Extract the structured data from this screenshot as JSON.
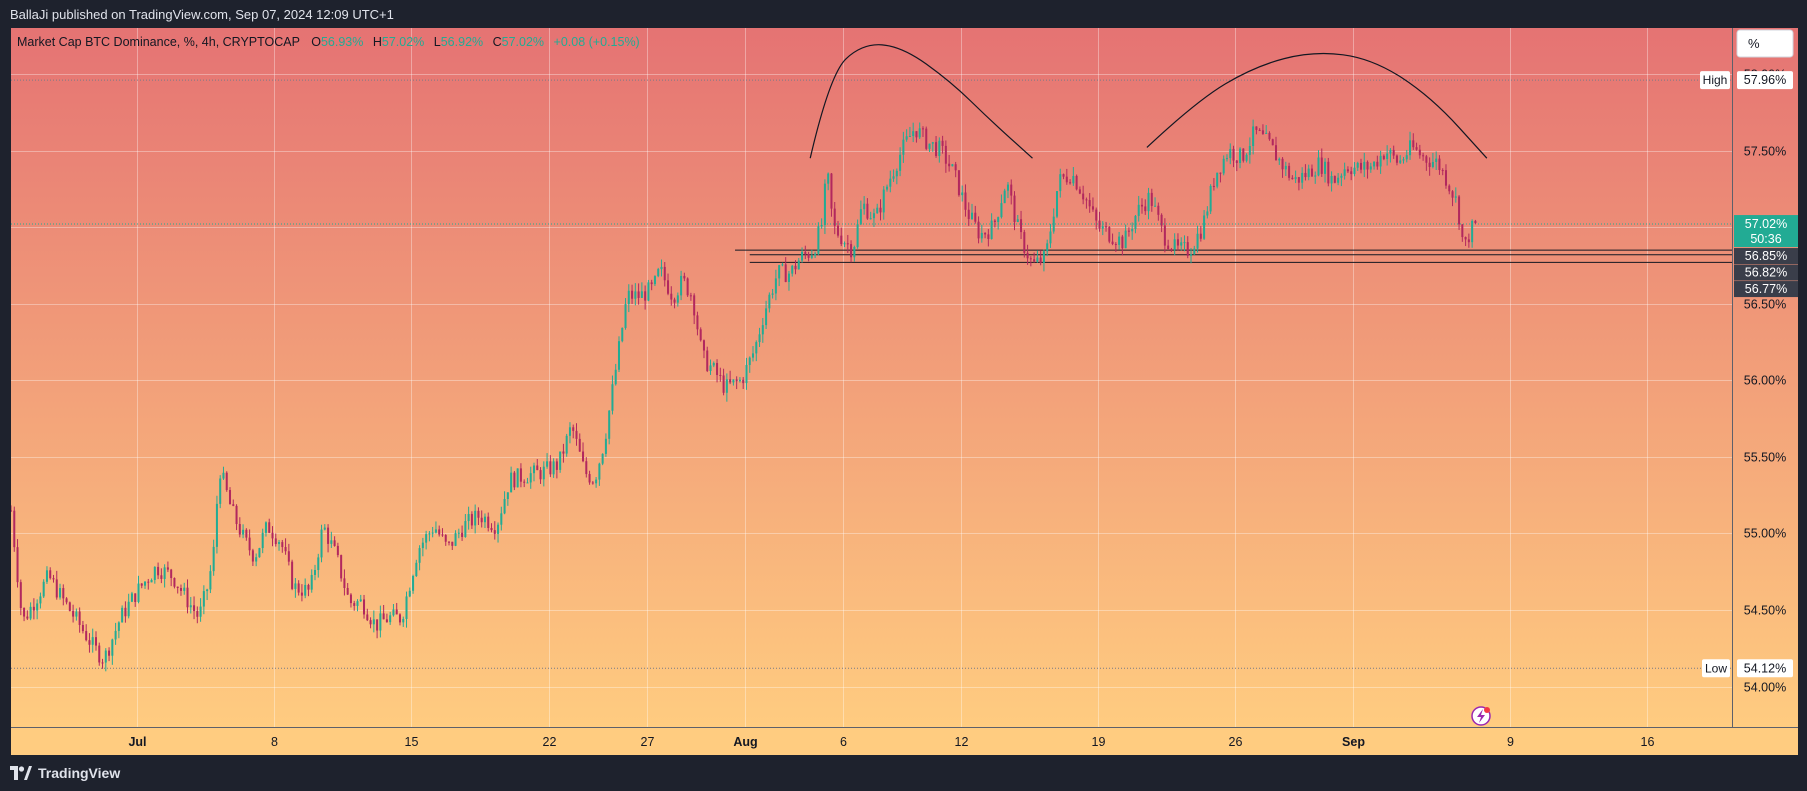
{
  "header": {
    "publisher": "BallaJi published on TradingView.com, Sep 07, 2024 12:09 UTC+1"
  },
  "legend": {
    "symbol": "Market Cap BTC Dominance, %, 4h, CRYPTOCAP",
    "open_label": "O",
    "open": "56.93%",
    "high_label": "H",
    "high": "57.02%",
    "low_label": "L",
    "low": "56.92%",
    "close_label": "C",
    "close": "57.02%",
    "change": "+0.08 (+0.15%)"
  },
  "scale_button": "%",
  "footer": {
    "brand": "TradingView"
  },
  "colors": {
    "up": "#22ab94",
    "down": "#b2285e",
    "bg_top": "#e57373",
    "bg_bottom": "#ffcc80",
    "frame": "#1e222d"
  },
  "chart_data": {
    "type": "candlestick",
    "title": "Market Cap BTC Dominance, %, 4h, CRYPTOCAP",
    "y_unit": "%",
    "ylim": [
      53.73,
      58.3
    ],
    "y_ticks": [
      {
        "value": 54.0,
        "label": "54.00%"
      },
      {
        "value": 54.5,
        "label": "54.50%"
      },
      {
        "value": 55.0,
        "label": "55.00%"
      },
      {
        "value": 55.5,
        "label": "55.50%"
      },
      {
        "value": 56.0,
        "label": "56.00%"
      },
      {
        "value": 56.5,
        "label": "56.50%"
      },
      {
        "value": 57.0,
        "label": "57.00%"
      },
      {
        "value": 57.5,
        "label": "57.50%"
      },
      {
        "value": 58.0,
        "label": "58.00%"
      }
    ],
    "x_ticks": [
      {
        "date": "2024-07-01",
        "label": "Jul",
        "bold": true
      },
      {
        "date": "2024-07-08",
        "label": "8"
      },
      {
        "date": "2024-07-15",
        "label": "15"
      },
      {
        "date": "2024-07-22",
        "label": "22"
      },
      {
        "date": "2024-07-27",
        "label": "27"
      },
      {
        "date": "2024-08-01",
        "label": "Aug",
        "bold": true
      },
      {
        "date": "2024-08-06",
        "label": "6"
      },
      {
        "date": "2024-08-12",
        "label": "12"
      },
      {
        "date": "2024-08-19",
        "label": "19"
      },
      {
        "date": "2024-08-26",
        "label": "26"
      },
      {
        "date": "2024-09-01",
        "label": "Sep",
        "bold": true
      },
      {
        "date": "2024-09-09",
        "label": "9"
      },
      {
        "date": "2024-09-16",
        "label": "16"
      }
    ],
    "xlim": [
      "2024-06-24 14:00",
      "2024-09-20 08:00"
    ],
    "price_path": [
      [
        "2024-06-24 14:00",
        55.15
      ],
      [
        "2024-06-25 04:00",
        54.42
      ],
      [
        "2024-06-26 12:00",
        54.72
      ],
      [
        "2024-06-27 04:00",
        54.58
      ],
      [
        "2024-06-28 00:00",
        54.42
      ],
      [
        "2024-06-28 20:00",
        54.25
      ],
      [
        "2024-06-29 08:00",
        54.18
      ],
      [
        "2024-06-30 04:00",
        54.45
      ],
      [
        "2024-07-01 00:00",
        54.62
      ],
      [
        "2024-07-02 00:00",
        54.78
      ],
      [
        "2024-07-02 20:00",
        54.72
      ],
      [
        "2024-07-03 12:00",
        54.58
      ],
      [
        "2024-07-04 04:00",
        54.45
      ],
      [
        "2024-07-04 16:00",
        54.68
      ],
      [
        "2024-07-05 00:00",
        54.95
      ],
      [
        "2024-07-05 04:00",
        55.45
      ],
      [
        "2024-07-05 20:00",
        55.15
      ],
      [
        "2024-07-06 12:00",
        54.95
      ],
      [
        "2024-07-07 00:00",
        54.85
      ],
      [
        "2024-07-07 16:00",
        55.05
      ],
      [
        "2024-07-08 08:00",
        54.95
      ],
      [
        "2024-07-09 00:00",
        54.65
      ],
      [
        "2024-07-09 20:00",
        54.62
      ],
      [
        "2024-07-10 12:00",
        55.05
      ],
      [
        "2024-07-11 04:00",
        54.85
      ],
      [
        "2024-07-11 20:00",
        54.55
      ],
      [
        "2024-07-12 12:00",
        54.55
      ],
      [
        "2024-07-13 04:00",
        54.4
      ],
      [
        "2024-07-13 20:00",
        54.45
      ],
      [
        "2024-07-14 12:00",
        54.45
      ],
      [
        "2024-07-15 08:00",
        54.9
      ],
      [
        "2024-07-16 04:00",
        55.05
      ],
      [
        "2024-07-16 20:00",
        54.9
      ],
      [
        "2024-07-17 16:00",
        55.05
      ],
      [
        "2024-07-18 12:00",
        55.12
      ],
      [
        "2024-07-19 08:00",
        55.05
      ],
      [
        "2024-07-20 00:00",
        55.35
      ],
      [
        "2024-07-20 20:00",
        55.38
      ],
      [
        "2024-07-21 16:00",
        55.4
      ],
      [
        "2024-07-22 12:00",
        55.45
      ],
      [
        "2024-07-23 04:00",
        55.7
      ],
      [
        "2024-07-23 20:00",
        55.4
      ],
      [
        "2024-07-24 08:00",
        55.35
      ],
      [
        "2024-07-24 20:00",
        55.6
      ],
      [
        "2024-07-25 08:00",
        56.0
      ],
      [
        "2024-07-26 00:00",
        56.55
      ],
      [
        "2024-07-26 16:00",
        56.55
      ],
      [
        "2024-07-27 08:00",
        56.6
      ],
      [
        "2024-07-27 16:00",
        56.72
      ],
      [
        "2024-07-28 08:00",
        56.55
      ],
      [
        "2024-07-28 20:00",
        56.65
      ],
      [
        "2024-07-29 08:00",
        56.55
      ],
      [
        "2024-07-29 20:00",
        56.15
      ],
      [
        "2024-07-30 12:00",
        56.05
      ],
      [
        "2024-07-31 00:00",
        55.95
      ],
      [
        "2024-07-31 20:00",
        56.0
      ],
      [
        "2024-08-01 12:00",
        56.2
      ],
      [
        "2024-08-02 00:00",
        56.45
      ],
      [
        "2024-08-02 16:00",
        56.7
      ],
      [
        "2024-08-03 08:00",
        56.7
      ],
      [
        "2024-08-03 20:00",
        56.8
      ],
      [
        "2024-08-04 12:00",
        56.85
      ],
      [
        "2024-08-05 00:00",
        57.05
      ],
      [
        "2024-08-05 04:00",
        57.4
      ],
      [
        "2024-08-05 12:00",
        57.0
      ],
      [
        "2024-08-05 20:00",
        56.95
      ],
      [
        "2024-08-06 12:00",
        56.85
      ],
      [
        "2024-08-07 00:00",
        57.15
      ],
      [
        "2024-08-07 16:00",
        57.05
      ],
      [
        "2024-08-08 08:00",
        57.3
      ],
      [
        "2024-08-09 00:00",
        57.5
      ],
      [
        "2024-08-09 16:00",
        57.65
      ],
      [
        "2024-08-10 08:00",
        57.55
      ],
      [
        "2024-08-11 00:00",
        57.5
      ],
      [
        "2024-08-11 16:00",
        57.35
      ],
      [
        "2024-08-12 08:00",
        57.1
      ],
      [
        "2024-08-13 00:00",
        56.95
      ],
      [
        "2024-08-13 16:00",
        57.0
      ],
      [
        "2024-08-14 08:00",
        57.3
      ],
      [
        "2024-08-15 00:00",
        56.95
      ],
      [
        "2024-08-15 16:00",
        56.75
      ],
      [
        "2024-08-16 08:00",
        56.8
      ],
      [
        "2024-08-17 00:00",
        57.3
      ],
      [
        "2024-08-17 16:00",
        57.35
      ],
      [
        "2024-08-18 08:00",
        57.2
      ],
      [
        "2024-08-19 00:00",
        57.0
      ],
      [
        "2024-08-19 16:00",
        56.95
      ],
      [
        "2024-08-20 08:00",
        56.9
      ],
      [
        "2024-08-21 00:00",
        57.1
      ],
      [
        "2024-08-21 16:00",
        57.2
      ],
      [
        "2024-08-22 08:00",
        56.95
      ],
      [
        "2024-08-23 00:00",
        56.85
      ],
      [
        "2024-08-23 16:00",
        56.85
      ],
      [
        "2024-08-24 08:00",
        57.0
      ],
      [
        "2024-08-25 00:00",
        57.35
      ],
      [
        "2024-08-25 16:00",
        57.5
      ],
      [
        "2024-08-26 08:00",
        57.45
      ],
      [
        "2024-08-27 00:00",
        57.62
      ],
      [
        "2024-08-27 16:00",
        57.55
      ],
      [
        "2024-08-28 08:00",
        57.42
      ],
      [
        "2024-08-29 00:00",
        57.3
      ],
      [
        "2024-08-29 16:00",
        57.35
      ],
      [
        "2024-08-30 08:00",
        57.42
      ],
      [
        "2024-08-31 00:00",
        57.3
      ],
      [
        "2024-08-31 16:00",
        57.4
      ],
      [
        "2024-09-01 08:00",
        57.38
      ],
      [
        "2024-09-02 00:00",
        57.4
      ],
      [
        "2024-09-02 16:00",
        57.5
      ],
      [
        "2024-09-03 08:00",
        57.42
      ],
      [
        "2024-09-04 00:00",
        57.52
      ],
      [
        "2024-09-04 16:00",
        57.45
      ],
      [
        "2024-09-05 08:00",
        57.42
      ],
      [
        "2024-09-05 20:00",
        57.3
      ],
      [
        "2024-09-06 08:00",
        57.15
      ],
      [
        "2024-09-06 16:00",
        56.85
      ],
      [
        "2024-09-07 00:00",
        56.98
      ],
      [
        "2024-09-07 08:00",
        57.02
      ]
    ],
    "markers": {
      "high": {
        "label": "High",
        "value": "57.96%",
        "y": 57.96
      },
      "low": {
        "label": "Low",
        "value": "54.12%",
        "y": 54.12
      }
    },
    "last_price": {
      "value": "57.02%",
      "countdown": "50:36",
      "y": 57.02
    },
    "level_labels": [
      {
        "value": "56.85%",
        "y": 56.85
      },
      {
        "value": "56.82%",
        "y": 56.82
      },
      {
        "value": "56.77%",
        "y": 56.77
      }
    ],
    "support_lines": [
      {
        "y": 56.85,
        "from": "2024-07-31 12:00"
      },
      {
        "y": 56.82,
        "from": "2024-08-01 06:00"
      },
      {
        "y": 56.77,
        "from": "2024-08-01 06:00"
      }
    ],
    "arcs": [
      {
        "points": [
          [
            "2024-08-04 08:00",
            57.45
          ],
          [
            "2024-08-05 08:00",
            58.0
          ],
          [
            "2024-08-07 00:00",
            58.2
          ],
          [
            "2024-08-09 00:00",
            58.18
          ],
          [
            "2024-08-11 12:00",
            57.95
          ],
          [
            "2024-08-13 12:00",
            57.7
          ],
          [
            "2024-08-15 16:00",
            57.45
          ]
        ]
      },
      {
        "points": [
          [
            "2024-08-21 12:00",
            57.52
          ],
          [
            "2024-08-24 00:00",
            57.82
          ],
          [
            "2024-08-27 00:00",
            58.05
          ],
          [
            "2024-08-30 00:00",
            58.15
          ],
          [
            "2024-09-02 00:00",
            58.1
          ],
          [
            "2024-09-05 00:00",
            57.85
          ],
          [
            "2024-09-07 20:00",
            57.45
          ]
        ]
      }
    ],
    "grid": true
  }
}
